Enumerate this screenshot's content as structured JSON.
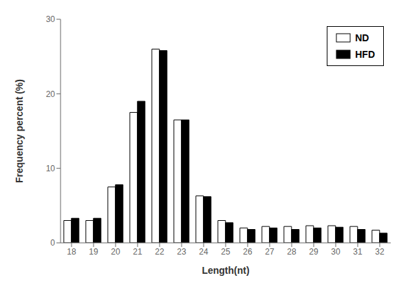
{
  "chart_data": {
    "type": "bar",
    "categories": [
      18,
      19,
      20,
      21,
      22,
      23,
      24,
      25,
      26,
      27,
      28,
      29,
      30,
      31,
      32
    ],
    "series": [
      {
        "name": "ND",
        "color": "#ffffff",
        "values": [
          3.0,
          3.0,
          7.5,
          17.5,
          26.0,
          16.5,
          6.3,
          3.0,
          2.0,
          2.2,
          2.2,
          2.3,
          2.3,
          2.2,
          1.7
        ]
      },
      {
        "name": "HFD",
        "color": "#000000",
        "values": [
          3.3,
          3.3,
          7.8,
          19.0,
          25.8,
          16.5,
          6.2,
          2.7,
          1.8,
          2.0,
          1.8,
          2.0,
          2.1,
          1.8,
          1.3
        ]
      }
    ],
    "xlabel": "Length(nt)",
    "ylabel": "Frequency percent (%)",
    "ylim": [
      0,
      30
    ],
    "yticks": [
      0,
      10,
      20,
      30
    ],
    "grid": false,
    "legend": "upper right"
  }
}
